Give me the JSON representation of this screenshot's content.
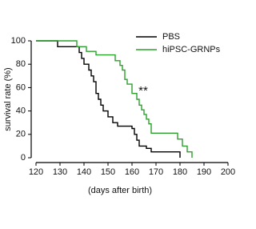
{
  "chart_data": {
    "type": "step",
    "step": "post",
    "xlabel": "(days after birth)",
    "ylabel": "survival rate (%)",
    "annotation": "**",
    "xlim": [
      120,
      200
    ],
    "xticks": [
      120,
      130,
      140,
      150,
      160,
      170,
      180,
      190,
      200
    ],
    "ylim": [
      0,
      100
    ],
    "yticks": [
      0,
      20,
      40,
      60,
      80,
      100
    ],
    "legend": "upper right",
    "series": [
      {
        "name": "PBS",
        "color": "#000000",
        "x": [
          120,
          129,
          138,
          139,
          140,
          142,
          143,
          144,
          145,
          146,
          147,
          148,
          150,
          152,
          154,
          160,
          161,
          162,
          163,
          166,
          168,
          180
        ],
        "values": [
          100,
          95,
          90,
          85,
          80,
          75,
          70,
          65,
          55,
          50,
          45,
          40,
          35,
          30,
          27,
          25,
          20,
          15,
          10,
          8,
          5,
          0
        ]
      },
      {
        "name": "hiPSC-GRNPs",
        "color": "#2ca02c",
        "x": [
          120,
          137,
          141,
          145,
          153,
          155,
          156,
          157,
          158,
          160,
          162,
          163,
          164,
          165,
          166,
          167,
          168,
          179,
          181,
          183,
          185
        ],
        "values": [
          100,
          95,
          91,
          88,
          83,
          79,
          75,
          67,
          63,
          55,
          50,
          45,
          41,
          37,
          33,
          29,
          21,
          16,
          10,
          5,
          0
        ]
      }
    ]
  }
}
